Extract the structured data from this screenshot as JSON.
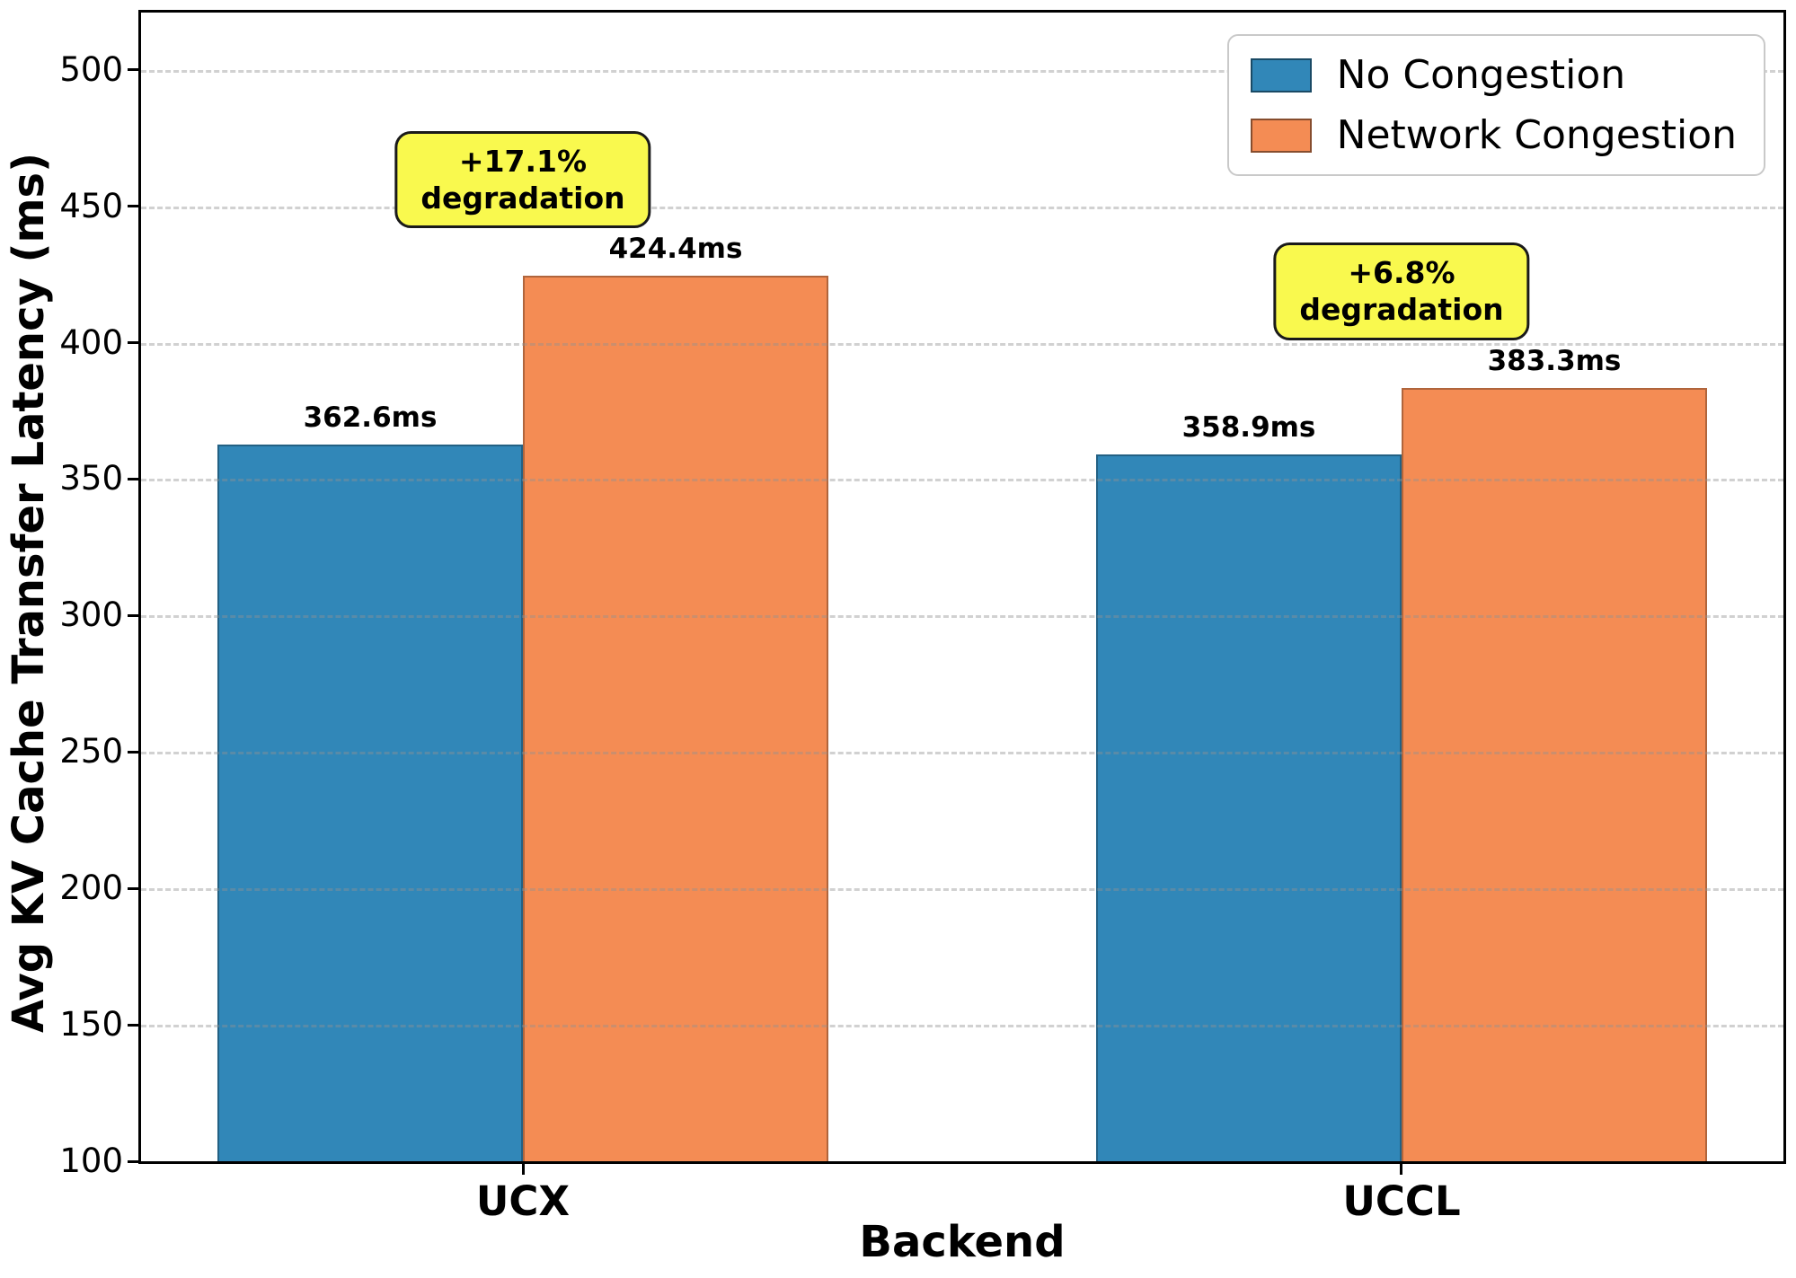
{
  "chart_data": {
    "type": "bar",
    "title": "",
    "xlabel": "Backend",
    "ylabel": "Avg KV Cache Transfer Latency (ms)",
    "categories": [
      "UCX",
      "UCCL"
    ],
    "series": [
      {
        "name": "No Congestion",
        "color": "#3187B8",
        "values": [
          362.6,
          358.9
        ],
        "labels": [
          "362.6ms",
          "358.9ms"
        ]
      },
      {
        "name": "Network Congestion",
        "color": "#F48C54",
        "values": [
          424.4,
          383.3
        ],
        "labels": [
          "424.4ms",
          "383.3ms"
        ]
      }
    ],
    "annotations": [
      {
        "category": "UCX",
        "lines": [
          "+17.1%",
          "degradation"
        ],
        "bottom_value": 442
      },
      {
        "category": "UCCL",
        "lines": [
          "+6.8%",
          "degradation"
        ],
        "bottom_value": 401
      }
    ],
    "ylim": [
      100,
      521
    ],
    "yticks": [
      100,
      150,
      200,
      250,
      300,
      350,
      400,
      450,
      500
    ],
    "grid": {
      "axis": "y",
      "style": "dashed",
      "on": true
    },
    "legend": {
      "position": "upper-right"
    },
    "colors": {
      "annotation_bg": "#F9F94E",
      "grid": "#919191",
      "axis": "#000000"
    }
  }
}
